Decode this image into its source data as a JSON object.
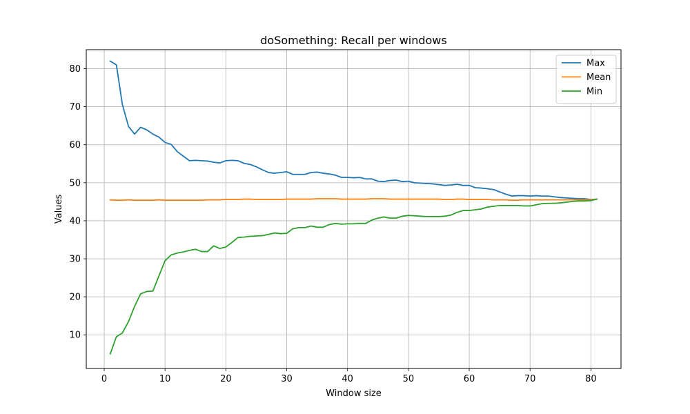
{
  "chart_data": {
    "type": "line",
    "title": "doSomething: Recall per windows",
    "xlabel": "Window size",
    "ylabel": "Values",
    "xlim": [
      -2.95,
      84.95
    ],
    "ylim": [
      1.15,
      85.0
    ],
    "xticks": [
      0,
      10,
      20,
      30,
      40,
      50,
      60,
      70,
      80
    ],
    "yticks": [
      10,
      20,
      30,
      40,
      50,
      60,
      70,
      80
    ],
    "grid": true,
    "legend_position": "top-right",
    "x": [
      1,
      2,
      3,
      4,
      5,
      6,
      7,
      8,
      9,
      10,
      11,
      12,
      13,
      14,
      15,
      16,
      17,
      18,
      19,
      20,
      21,
      22,
      23,
      24,
      25,
      26,
      27,
      28,
      29,
      30,
      31,
      32,
      33,
      34,
      35,
      36,
      37,
      38,
      39,
      40,
      41,
      42,
      43,
      44,
      45,
      46,
      47,
      48,
      49,
      50,
      51,
      52,
      53,
      54,
      55,
      56,
      57,
      58,
      59,
      60,
      61,
      62,
      63,
      64,
      65,
      66,
      67,
      68,
      69,
      70,
      71,
      72,
      73,
      74,
      75,
      76,
      77,
      78,
      79,
      80,
      81
    ],
    "series": [
      {
        "name": "Max",
        "color": "#1f77b4",
        "values": [
          82.0,
          81.0,
          70.5,
          64.8,
          62.8,
          64.6,
          63.9,
          62.8,
          62.0,
          60.6,
          60.1,
          58.2,
          57.0,
          55.8,
          55.9,
          55.8,
          55.7,
          55.4,
          55.2,
          55.8,
          55.9,
          55.8,
          55.1,
          54.8,
          54.2,
          53.4,
          52.7,
          52.5,
          52.7,
          52.9,
          52.2,
          52.2,
          52.2,
          52.7,
          52.8,
          52.5,
          52.3,
          52.0,
          51.4,
          51.4,
          51.3,
          51.4,
          51.0,
          51.0,
          50.4,
          50.3,
          50.6,
          50.7,
          50.3,
          50.4,
          50.0,
          49.9,
          49.8,
          49.7,
          49.5,
          49.3,
          49.4,
          49.6,
          49.3,
          49.3,
          48.7,
          48.6,
          48.4,
          48.2,
          47.6,
          47.0,
          46.5,
          46.6,
          46.6,
          46.5,
          46.6,
          46.5,
          46.5,
          46.3,
          46.1,
          46.0,
          45.9,
          45.8,
          45.8,
          45.6,
          45.7
        ]
      },
      {
        "name": "Mean",
        "color": "#ff7f0e",
        "values": [
          45.5,
          45.4,
          45.4,
          45.5,
          45.4,
          45.4,
          45.4,
          45.4,
          45.5,
          45.4,
          45.4,
          45.4,
          45.4,
          45.4,
          45.4,
          45.4,
          45.5,
          45.5,
          45.5,
          45.6,
          45.6,
          45.6,
          45.7,
          45.7,
          45.6,
          45.6,
          45.6,
          45.6,
          45.6,
          45.7,
          45.7,
          45.7,
          45.7,
          45.7,
          45.8,
          45.8,
          45.8,
          45.8,
          45.7,
          45.7,
          45.7,
          45.7,
          45.7,
          45.8,
          45.8,
          45.8,
          45.7,
          45.7,
          45.7,
          45.7,
          45.7,
          45.7,
          45.7,
          45.7,
          45.7,
          45.6,
          45.6,
          45.7,
          45.7,
          45.6,
          45.6,
          45.6,
          45.6,
          45.5,
          45.5,
          45.5,
          45.4,
          45.4,
          45.5,
          45.5,
          45.5,
          45.5,
          45.5,
          45.5,
          45.5,
          45.5,
          45.5,
          45.5,
          45.5,
          45.5,
          45.7
        ]
      },
      {
        "name": "Min",
        "color": "#2ca02c",
        "values": [
          5.0,
          9.5,
          10.5,
          13.5,
          17.5,
          20.8,
          21.4,
          21.5,
          25.5,
          29.5,
          31.0,
          31.5,
          31.8,
          32.2,
          32.5,
          31.9,
          31.9,
          33.4,
          32.7,
          33.1,
          34.3,
          35.6,
          35.7,
          35.9,
          36.0,
          36.1,
          36.4,
          36.8,
          36.6,
          36.7,
          37.9,
          38.2,
          38.2,
          38.6,
          38.3,
          38.3,
          39.0,
          39.3,
          39.1,
          39.2,
          39.2,
          39.3,
          39.3,
          40.2,
          40.7,
          41.0,
          40.7,
          40.7,
          41.2,
          41.4,
          41.3,
          41.2,
          41.1,
          41.1,
          41.1,
          41.2,
          41.5,
          42.2,
          42.7,
          42.7,
          42.9,
          43.1,
          43.6,
          43.8,
          44.0,
          44.0,
          44.0,
          44.0,
          43.9,
          43.9,
          44.2,
          44.5,
          44.6,
          44.6,
          44.7,
          44.9,
          45.1,
          45.2,
          45.2,
          45.3,
          45.7
        ]
      }
    ]
  }
}
